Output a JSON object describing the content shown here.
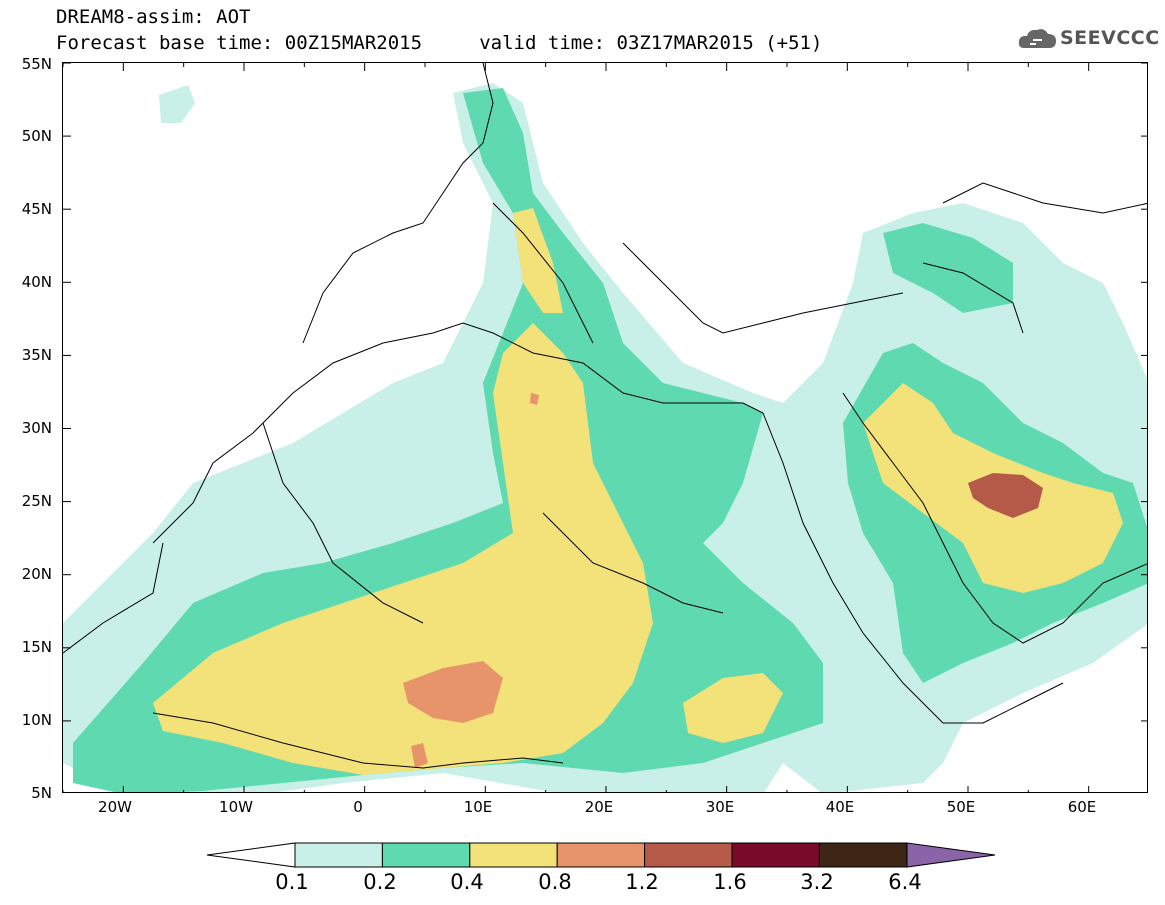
{
  "title": {
    "line1": "DREAM8-assim: AOT",
    "line2": "Forecast base time: 00Z15MAR2015     valid time: 03Z17MAR2015 (+51)"
  },
  "logo": {
    "text": "SEEVCCC",
    "icon": "cloud-icon"
  },
  "map": {
    "lat_range": [
      5,
      55
    ],
    "lon_range": [
      -25,
      65
    ],
    "lat_labels": [
      "55N",
      "50N",
      "45N",
      "40N",
      "35N",
      "30N",
      "25N",
      "20N",
      "15N",
      "10N",
      "5N"
    ],
    "lon_labels": [
      "20W",
      "10W",
      "0",
      "10E",
      "20E",
      "30E",
      "40E",
      "50E",
      "60E"
    ]
  },
  "colorbar": {
    "levels": [
      "0.1",
      "0.2",
      "0.4",
      "0.8",
      "1.2",
      "1.6",
      "3.2",
      "6.4"
    ],
    "colors": [
      "#c8f0e8",
      "#5fd9b0",
      "#f3e27a",
      "#e8946a",
      "#b55a48",
      "#7a0a2a",
      "#3d2615",
      "#8a63a8"
    ],
    "under_color": "#ffffff",
    "over_color": "#8a63a8"
  }
}
